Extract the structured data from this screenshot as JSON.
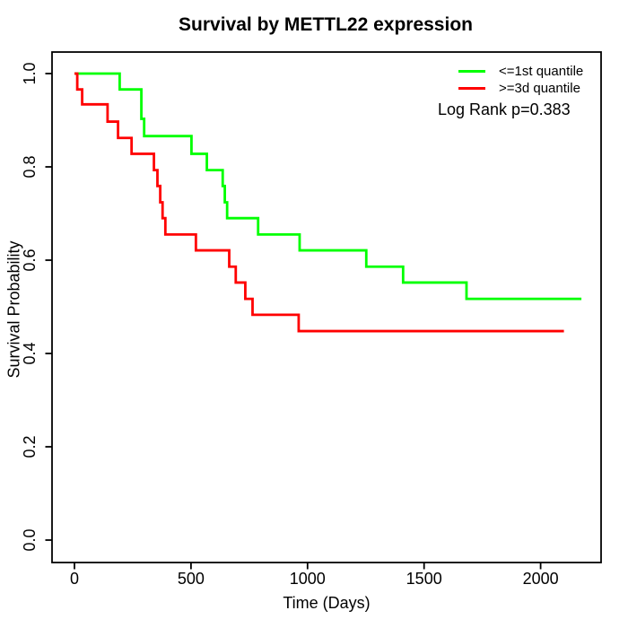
{
  "chart_data": {
    "type": "line",
    "subtype": "kaplan-meier-step",
    "title": "Survival by METTL22 expression",
    "xlabel": "Time (Days)",
    "ylabel": "Survival Probability",
    "xlim": [
      0,
      2200
    ],
    "ylim": [
      0.0,
      1.0
    ],
    "xticks": [
      "0",
      "500",
      "1000",
      "1500",
      "2000"
    ],
    "yticks": [
      "0.0",
      "0.2",
      "0.4",
      "0.6",
      "0.8",
      "1.0"
    ],
    "grid": "off",
    "legend_position": "top-right-inside",
    "annotation": "Log Rank p=0.383",
    "series": [
      {
        "name": "<=1st quantile",
        "color": "#00FF00",
        "start": [
          0,
          1.0
        ],
        "end_time": 2175,
        "steps": [
          [
            194,
            0.966
          ],
          [
            287,
            0.903
          ],
          [
            299,
            0.866
          ],
          [
            502,
            0.828
          ],
          [
            568,
            0.793
          ],
          [
            636,
            0.759
          ],
          [
            645,
            0.724
          ],
          [
            655,
            0.69
          ],
          [
            788,
            0.655
          ],
          [
            966,
            0.621
          ],
          [
            1252,
            0.586
          ],
          [
            1410,
            0.552
          ],
          [
            1682,
            0.517
          ]
        ]
      },
      {
        "name": ">=3d quantile",
        "color": "#FF0000",
        "start": [
          0,
          1.0
        ],
        "end_time": 2100,
        "steps": [
          [
            12,
            0.966
          ],
          [
            33,
            0.934
          ],
          [
            142,
            0.897
          ],
          [
            187,
            0.862
          ],
          [
            245,
            0.828
          ],
          [
            341,
            0.793
          ],
          [
            356,
            0.759
          ],
          [
            368,
            0.724
          ],
          [
            378,
            0.69
          ],
          [
            390,
            0.655
          ],
          [
            521,
            0.621
          ],
          [
            664,
            0.586
          ],
          [
            692,
            0.552
          ],
          [
            733,
            0.517
          ],
          [
            764,
            0.483
          ],
          [
            962,
            0.448
          ]
        ]
      }
    ]
  }
}
